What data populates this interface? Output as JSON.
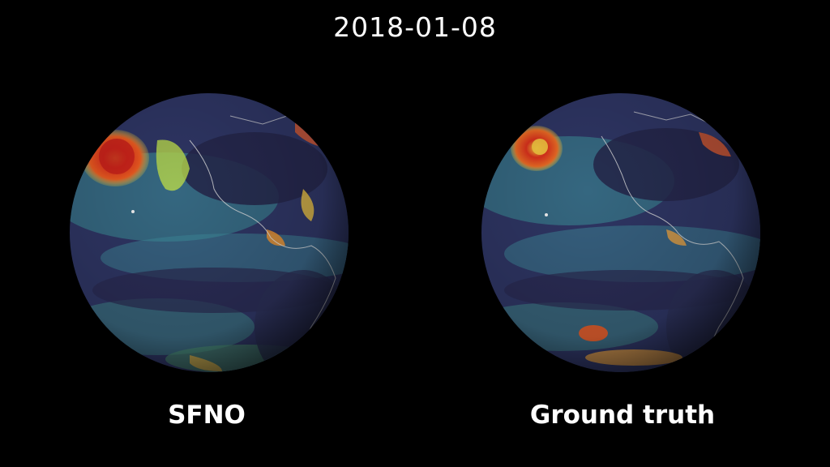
{
  "date": "2018-01-08",
  "panels": [
    {
      "label": "SFNO"
    },
    {
      "label": "Ground truth"
    }
  ]
}
